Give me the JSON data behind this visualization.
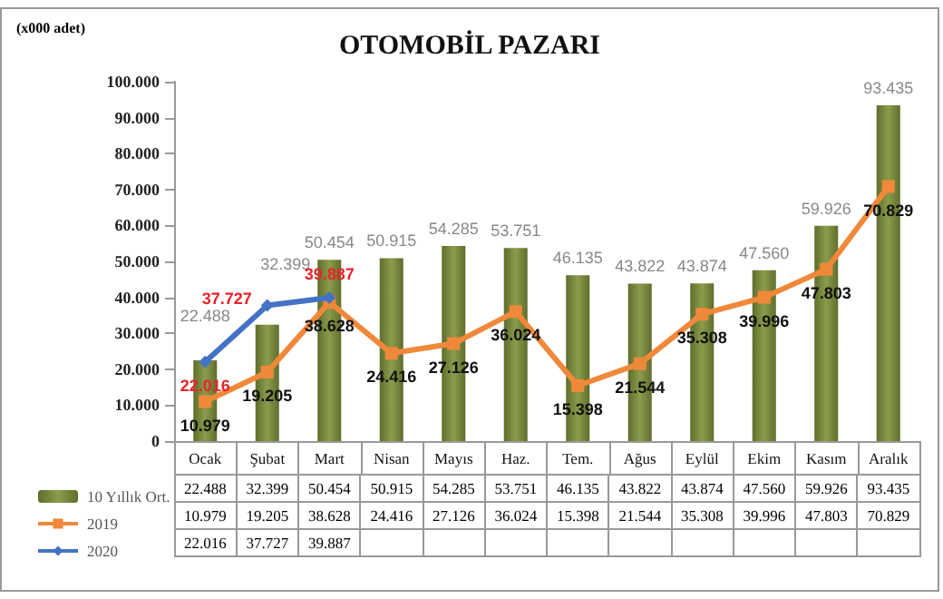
{
  "chart_data": {
    "type": "bar",
    "title": "OTOMOBİL PAZARI",
    "ylabel": "(x000 adet)",
    "categories": [
      "Ocak",
      "Şubat",
      "Mart",
      "Nisan",
      "Mayıs",
      "Haz.",
      "Tem.",
      "Ağus",
      "Eylül",
      "Ekim",
      "Kasım",
      "Aralık"
    ],
    "series": [
      {
        "name": "10 Yıllık Ort.",
        "color": "#8c9c4c",
        "values": [
          22488,
          32399,
          50454,
          50915,
          54285,
          53751,
          46135,
          43822,
          43874,
          47560,
          59926,
          93435
        ],
        "value_labels": [
          "22.488",
          "32.399",
          "50.454",
          "50.915",
          "54.285",
          "53.751",
          "46.135",
          "43.822",
          "43.874",
          "47.560",
          "59.926",
          "93.435"
        ]
      },
      {
        "name": "2019",
        "type": "line",
        "color": "#f0883a",
        "marker": "square",
        "values": [
          10979,
          19205,
          38628,
          24416,
          27126,
          36024,
          15398,
          21544,
          35308,
          39996,
          47803,
          70829
        ],
        "value_labels": [
          "10.979",
          "19.205",
          "38.628",
          "24.416",
          "27.126",
          "36.024",
          "15.398",
          "21.544",
          "35.308",
          "39.996",
          "47.803",
          "70.829"
        ]
      },
      {
        "name": "2020",
        "type": "line",
        "color": "#4472c4",
        "marker": "diamond",
        "values": [
          22016,
          37727,
          39887,
          null,
          null,
          null,
          null,
          null,
          null,
          null,
          null,
          null
        ],
        "value_labels": [
          "22.016",
          "37.727",
          "39.887",
          null,
          null,
          null,
          null,
          null,
          null,
          null,
          null,
          null
        ]
      }
    ],
    "ylim": [
      0,
      100000
    ],
    "yticks": [
      0,
      {
        "value": 10000,
        "label": "10.000"
      },
      {
        "value": 20000,
        "label": "20.000"
      },
      {
        "value": 30000,
        "label": "30.000"
      },
      {
        "value": 40000,
        "label": "40.000"
      },
      {
        "value": 50000,
        "label": "50.000"
      },
      {
        "value": 60000,
        "label": "60.000"
      },
      {
        "value": 70000,
        "label": "70.000"
      },
      {
        "value": 80000,
        "label": "80.000"
      },
      {
        "value": 90000,
        "label": "90.000"
      },
      {
        "value": 100000,
        "label": "100.000"
      }
    ],
    "grid": false,
    "legend": "bottom left"
  }
}
